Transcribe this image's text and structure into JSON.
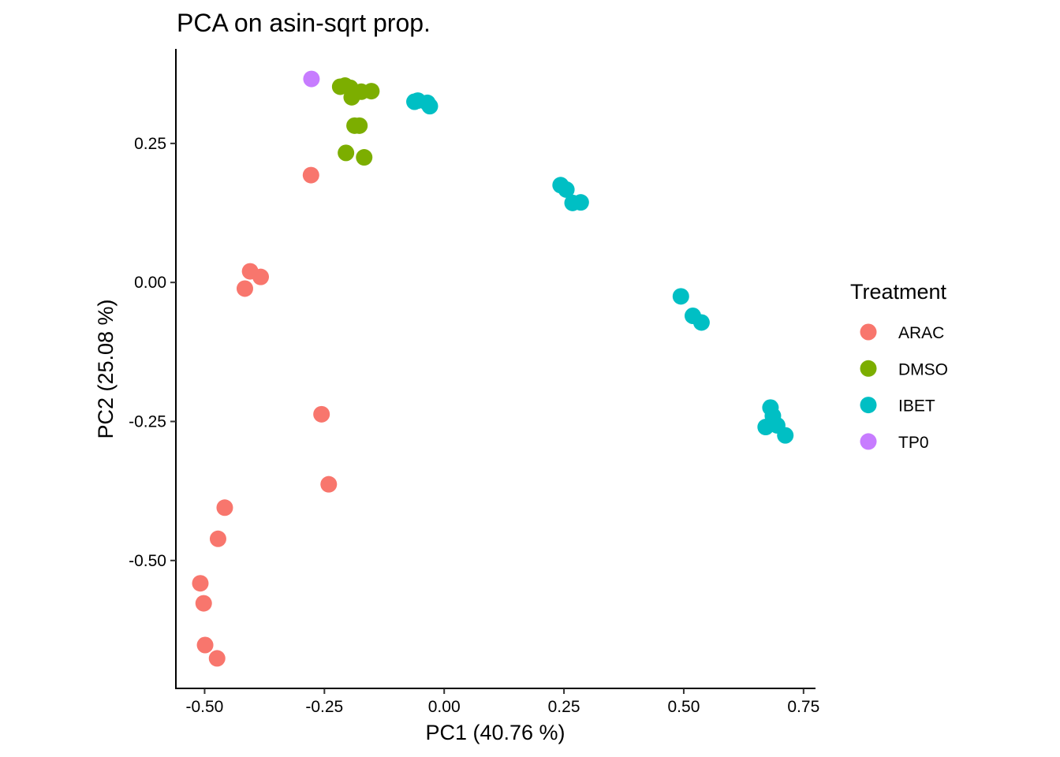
{
  "chart_data": {
    "type": "scatter",
    "title": "PCA on asin-sqrt prop.",
    "xlabel": "PC1 (40.76 %)",
    "ylabel": "PC2 (25.08 %)",
    "xlim": [
      -0.56,
      0.775
    ],
    "ylim": [
      -0.73,
      0.42
    ],
    "x_ticks": [
      -0.5,
      -0.25,
      0.0,
      0.25,
      0.5,
      0.75
    ],
    "x_tick_labels": [
      "-0.50",
      "-0.25",
      "0.00",
      "0.25",
      "0.50",
      "0.75"
    ],
    "y_ticks": [
      -0.5,
      -0.25,
      0.0,
      0.25
    ],
    "y_tick_labels": [
      "-0.50",
      "-0.25",
      "0.00",
      "0.25"
    ],
    "grid": false,
    "legend": {
      "title": "Treatment",
      "position": "right"
    },
    "series": [
      {
        "name": "ARAC",
        "color": "#F8766D",
        "points": [
          [
            -0.278,
            0.193
          ],
          [
            -0.405,
            0.02
          ],
          [
            -0.383,
            0.01
          ],
          [
            -0.416,
            -0.011
          ],
          [
            -0.256,
            -0.237
          ],
          [
            -0.241,
            -0.363
          ],
          [
            -0.458,
            -0.405
          ],
          [
            -0.472,
            -0.461
          ],
          [
            -0.509,
            -0.541
          ],
          [
            -0.502,
            -0.577
          ],
          [
            -0.499,
            -0.652
          ],
          [
            -0.474,
            -0.676
          ]
        ]
      },
      {
        "name": "DMSO",
        "color": "#7CAE00",
        "points": [
          [
            -0.217,
            0.352
          ],
          [
            -0.207,
            0.354
          ],
          [
            -0.196,
            0.35
          ],
          [
            -0.193,
            0.333
          ],
          [
            -0.173,
            0.343
          ],
          [
            -0.152,
            0.344
          ],
          [
            -0.187,
            0.282
          ],
          [
            -0.177,
            0.282
          ],
          [
            -0.205,
            0.233
          ],
          [
            -0.167,
            0.225
          ]
        ]
      },
      {
        "name": "IBET",
        "color": "#00BFC4",
        "points": [
          [
            -0.062,
            0.325
          ],
          [
            -0.055,
            0.327
          ],
          [
            -0.035,
            0.323
          ],
          [
            -0.03,
            0.317
          ],
          [
            0.243,
            0.175
          ],
          [
            0.255,
            0.167
          ],
          [
            0.268,
            0.143
          ],
          [
            0.285,
            0.144
          ],
          [
            0.494,
            -0.025
          ],
          [
            0.519,
            -0.06
          ],
          [
            0.537,
            -0.072
          ],
          [
            0.681,
            -0.225
          ],
          [
            0.686,
            -0.24
          ],
          [
            0.695,
            -0.257
          ],
          [
            0.671,
            -0.26
          ],
          [
            0.712,
            -0.275
          ]
        ]
      },
      {
        "name": "TP0",
        "color": "#C77CFF",
        "points": [
          [
            -0.277,
            0.366
          ]
        ]
      }
    ]
  }
}
